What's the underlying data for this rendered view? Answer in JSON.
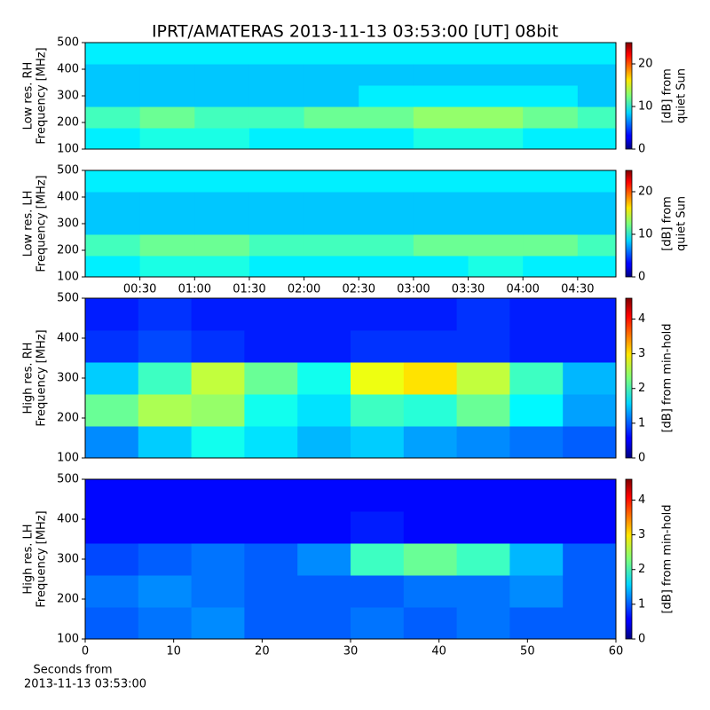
{
  "title": "IPRT/AMATERAS 2013-11-13 03:53:00 [UT]   08bit",
  "chart_data": [
    {
      "type": "heatmap",
      "colormap": "jet",
      "ylabel": [
        "Low res. RH",
        "Frequency [MHz]"
      ],
      "ylim": [
        100,
        500
      ],
      "yticks": [
        100,
        200,
        300,
        400,
        500
      ],
      "xlim": [
        0,
        291
      ],
      "xbins": [
        0,
        30,
        60,
        90,
        120,
        150,
        180,
        210,
        240,
        270,
        291
      ],
      "ybins": [
        100,
        180,
        260,
        340,
        420,
        500
      ],
      "values": [
        [
          9,
          10,
          10,
          9,
          9,
          9,
          10,
          10,
          9,
          9
        ],
        [
          11,
          12,
          11,
          11,
          12,
          12,
          13,
          13,
          12,
          11
        ],
        [
          8,
          8,
          8,
          8,
          8,
          9,
          9,
          9,
          9,
          8
        ],
        [
          8,
          8,
          8,
          8,
          8,
          8,
          8,
          8,
          8,
          8
        ],
        [
          9,
          9,
          9,
          9,
          9,
          9,
          9,
          9,
          9,
          9
        ]
      ],
      "clim": [
        0,
        25
      ],
      "cticks": [
        0,
        10,
        20
      ],
      "clabel": [
        "[dB] from",
        "quiet Sun"
      ]
    },
    {
      "type": "heatmap",
      "colormap": "jet",
      "ylabel": [
        "Low res. LH",
        "Frequency [MHz]"
      ],
      "ylim": [
        100,
        500
      ],
      "yticks": [
        100,
        200,
        300,
        400,
        500
      ],
      "xlim": [
        0,
        291
      ],
      "xticks": [
        {
          "value": 30,
          "label": "00:30"
        },
        {
          "value": 60,
          "label": "01:00"
        },
        {
          "value": 90,
          "label": "01:30"
        },
        {
          "value": 120,
          "label": "02:00"
        },
        {
          "value": 150,
          "label": "02:30"
        },
        {
          "value": 180,
          "label": "03:00"
        },
        {
          "value": 210,
          "label": "03:30"
        },
        {
          "value": 240,
          "label": "04:00"
        },
        {
          "value": 270,
          "label": "04:30"
        }
      ],
      "xbins": [
        0,
        30,
        60,
        90,
        120,
        150,
        180,
        210,
        240,
        270,
        291
      ],
      "ybins": [
        100,
        180,
        260,
        340,
        420,
        500
      ],
      "values": [
        [
          9,
          10,
          10,
          9,
          9,
          9,
          9,
          10,
          9,
          9
        ],
        [
          11,
          12,
          12,
          11,
          11,
          11,
          12,
          12,
          12,
          11
        ],
        [
          8,
          8,
          8,
          8,
          8,
          8,
          8,
          8,
          8,
          8
        ],
        [
          8,
          8,
          8,
          8,
          8,
          8,
          8,
          8,
          8,
          8
        ],
        [
          9,
          9,
          9,
          9,
          9,
          9,
          9,
          9,
          9,
          9
        ]
      ],
      "clim": [
        0,
        25
      ],
      "cticks": [
        0,
        10,
        20
      ],
      "clabel": [
        "[dB] from",
        "quiet Sun"
      ]
    },
    {
      "type": "heatmap",
      "colormap": "jet",
      "ylabel": [
        "High res. RH",
        "Frequency [MHz]"
      ],
      "ylim": [
        100,
        500
      ],
      "yticks": [
        100,
        200,
        300,
        400,
        500
      ],
      "xlim": [
        0,
        60
      ],
      "xbins": [
        0,
        6,
        12,
        18,
        24,
        30,
        36,
        42,
        48,
        54,
        60
      ],
      "ybins": [
        100,
        180,
        260,
        340,
        420,
        500
      ],
      "values": [
        [
          1.2,
          1.5,
          1.8,
          1.6,
          1.4,
          1.5,
          1.3,
          1.2,
          1.1,
          1.0
        ],
        [
          2.2,
          2.5,
          2.4,
          1.8,
          1.6,
          2.0,
          1.9,
          2.2,
          1.7,
          1.3
        ],
        [
          1.5,
          2.0,
          2.6,
          2.2,
          1.8,
          2.8,
          3.0,
          2.6,
          2.0,
          1.4
        ],
        [
          0.8,
          0.9,
          0.8,
          0.7,
          0.7,
          0.8,
          0.8,
          0.8,
          0.7,
          0.7
        ],
        [
          0.7,
          0.8,
          0.7,
          0.7,
          0.7,
          0.7,
          0.7,
          0.8,
          0.7,
          0.7
        ]
      ],
      "clim": [
        0,
        4.6
      ],
      "cticks": [
        0,
        1,
        2,
        3,
        4
      ],
      "clabel": [
        "[dB] from min-hold"
      ]
    },
    {
      "type": "heatmap",
      "colormap": "jet",
      "ylabel": [
        "High res. LH",
        "Frequency [MHz]"
      ],
      "ylim": [
        100,
        500
      ],
      "yticks": [
        100,
        200,
        300,
        400,
        500
      ],
      "xlim": [
        0,
        60
      ],
      "xticks": [
        0,
        10,
        20,
        30,
        40,
        50,
        60
      ],
      "xlabel": [
        "Seconds from",
        "2013-11-13 03:53:00"
      ],
      "xbins": [
        0,
        6,
        12,
        18,
        24,
        30,
        36,
        42,
        48,
        54,
        60
      ],
      "ybins": [
        100,
        180,
        260,
        340,
        420,
        500
      ],
      "values": [
        [
          1.0,
          1.1,
          1.2,
          1.0,
          1.0,
          1.1,
          1.0,
          1.1,
          1.0,
          1.0
        ],
        [
          1.1,
          1.2,
          1.1,
          1.0,
          1.0,
          1.0,
          1.1,
          1.1,
          1.2,
          1.0
        ],
        [
          0.9,
          1.0,
          1.1,
          1.0,
          1.2,
          2.0,
          2.2,
          2.0,
          1.4,
          1.0
        ],
        [
          0.6,
          0.6,
          0.6,
          0.6,
          0.6,
          0.7,
          0.6,
          0.6,
          0.6,
          0.6
        ],
        [
          0.6,
          0.6,
          0.6,
          0.6,
          0.6,
          0.6,
          0.6,
          0.6,
          0.6,
          0.6
        ]
      ],
      "clim": [
        0,
        4.6
      ],
      "cticks": [
        0,
        1,
        2,
        3,
        4
      ],
      "clabel": [
        "[dB] from min-hold"
      ]
    }
  ]
}
